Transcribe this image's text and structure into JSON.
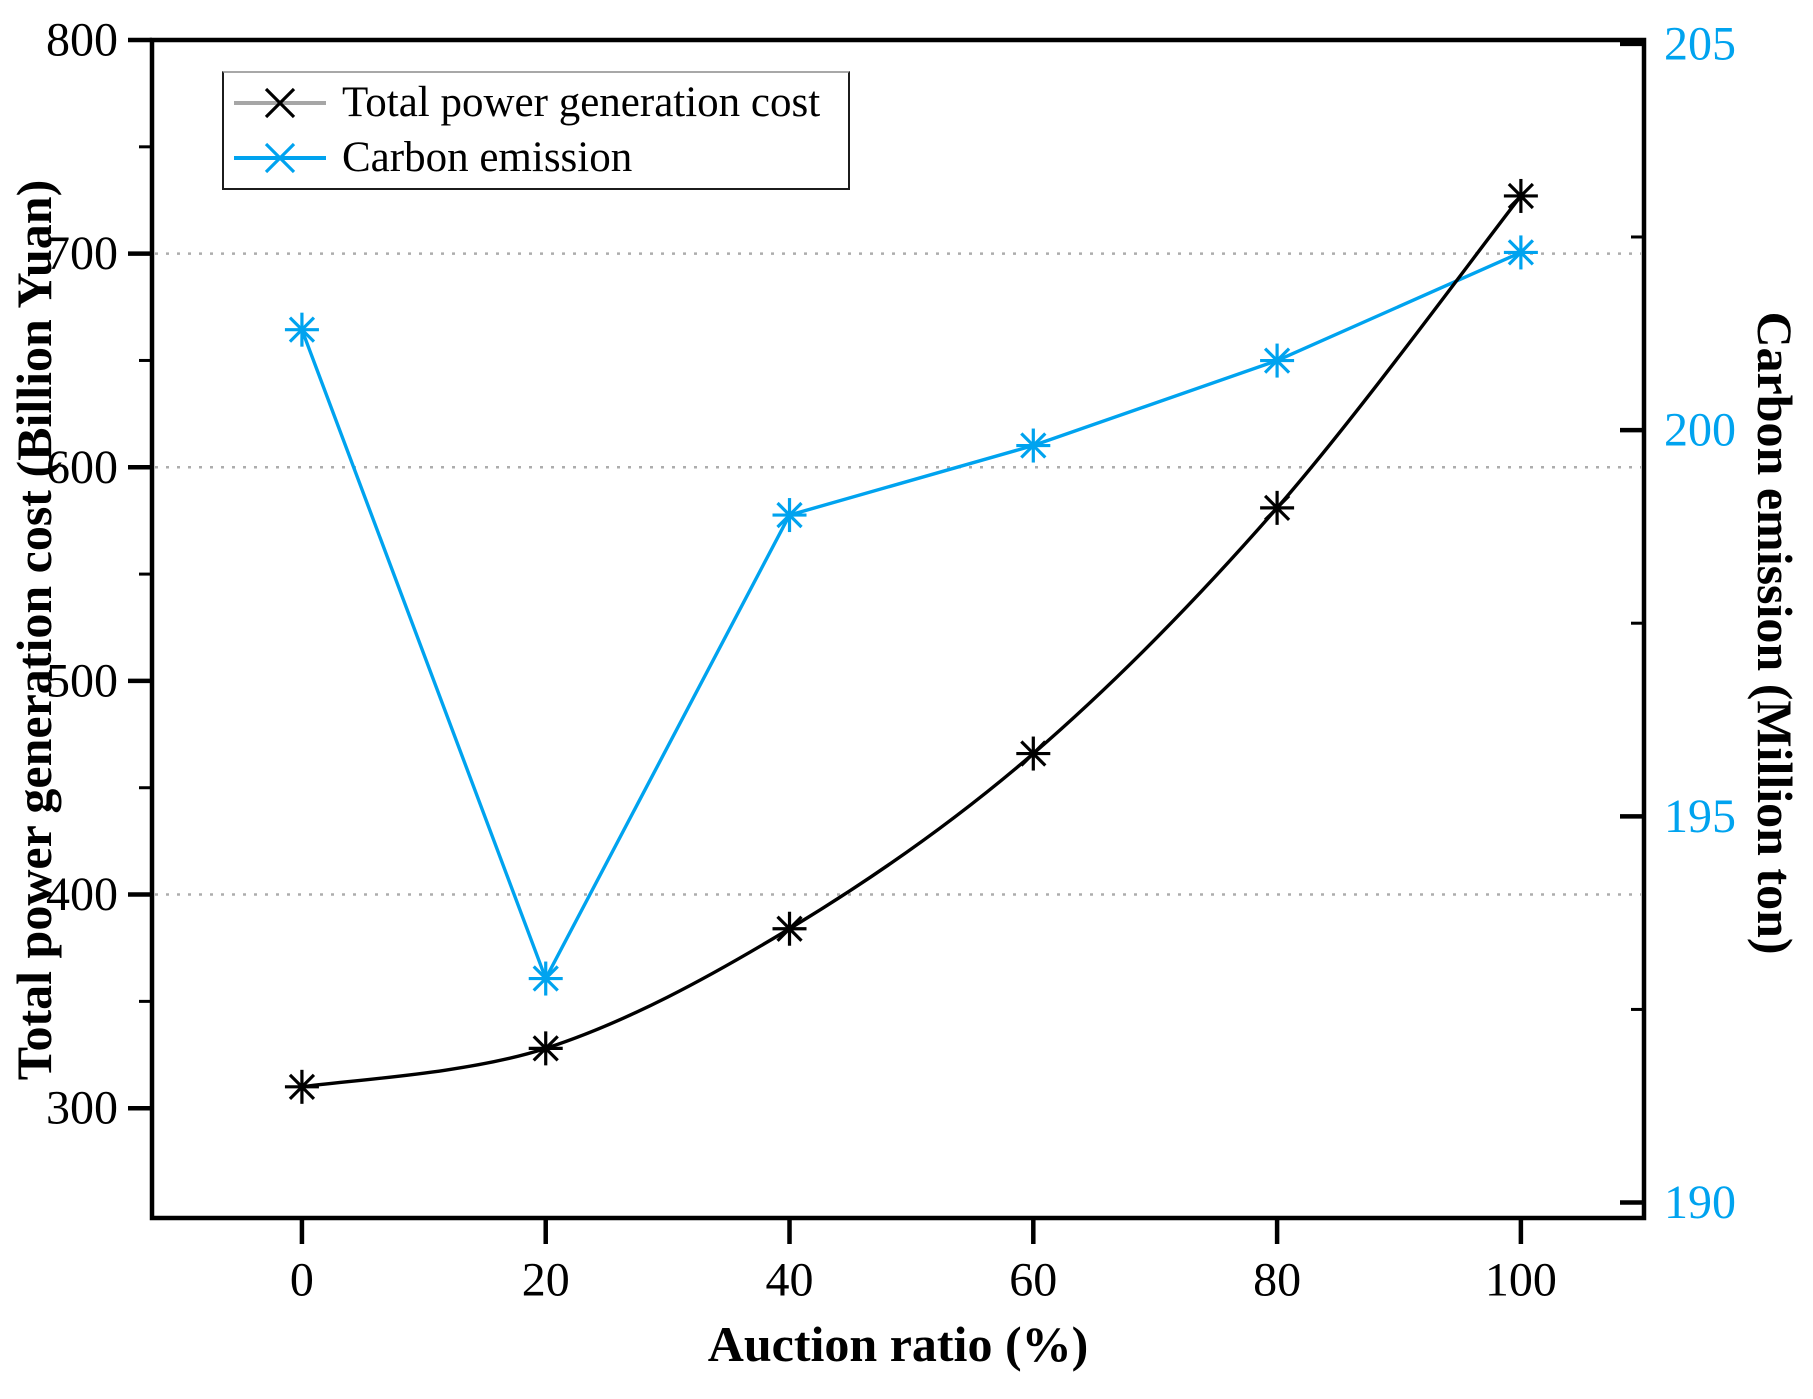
{
  "figure": {
    "background": "#ffffff"
  },
  "chart_data": {
    "type": "line",
    "x": [
      0,
      20,
      40,
      60,
      80,
      100
    ],
    "series": [
      {
        "name": "Total power generation cost",
        "axis": "left",
        "color": "#000000",
        "marker": "asterisk-8-arm",
        "line_style": "smooth",
        "values": [
          310,
          328,
          384,
          466,
          581,
          727
        ]
      },
      {
        "name": "Carbon emission",
        "axis": "right",
        "color": "#00a3ef",
        "marker": "asterisk-8-arm",
        "line_style": "straight",
        "values": [
          201.3,
          192.9,
          198.9,
          199.8,
          200.9,
          202.3
        ]
      }
    ],
    "xlabel": "Auction ratio (%)",
    "ylabel_left": "Total power generation cost (Billion Yuan)",
    "ylabel_right": "Carbon emission (Million ton)",
    "x_ticks": [
      0,
      20,
      40,
      60,
      80,
      100
    ],
    "xlim": [
      -12.3,
      110.1
    ],
    "left_ticks": [
      300,
      400,
      500,
      600,
      700,
      800
    ],
    "left_minor_ticks": [
      350,
      450,
      550,
      650,
      750
    ],
    "ylim_left": [
      248.6,
      800
    ],
    "right_ticks": [
      190,
      195,
      200,
      205
    ],
    "right_minor_ticks": [
      192.5,
      197.5,
      202.5
    ],
    "ylim_right": [
      189.8,
      205.05
    ],
    "gridlines_left_values": [
      400,
      600,
      700
    ],
    "grid_on": true,
    "colors": {
      "axis": "#000000",
      "grid": "#adadad",
      "right_axis_text": "#00a3ef",
      "legend_line_series1": "#a6a6a6"
    },
    "legend": {
      "position": "top-left",
      "entries": [
        {
          "label": "Total power generation cost",
          "line_color": "#a6a6a6",
          "marker_color": "#000000"
        },
        {
          "label": "Carbon emission",
          "line_color": "#00a3ef",
          "marker_color": "#00a3ef"
        }
      ]
    }
  }
}
